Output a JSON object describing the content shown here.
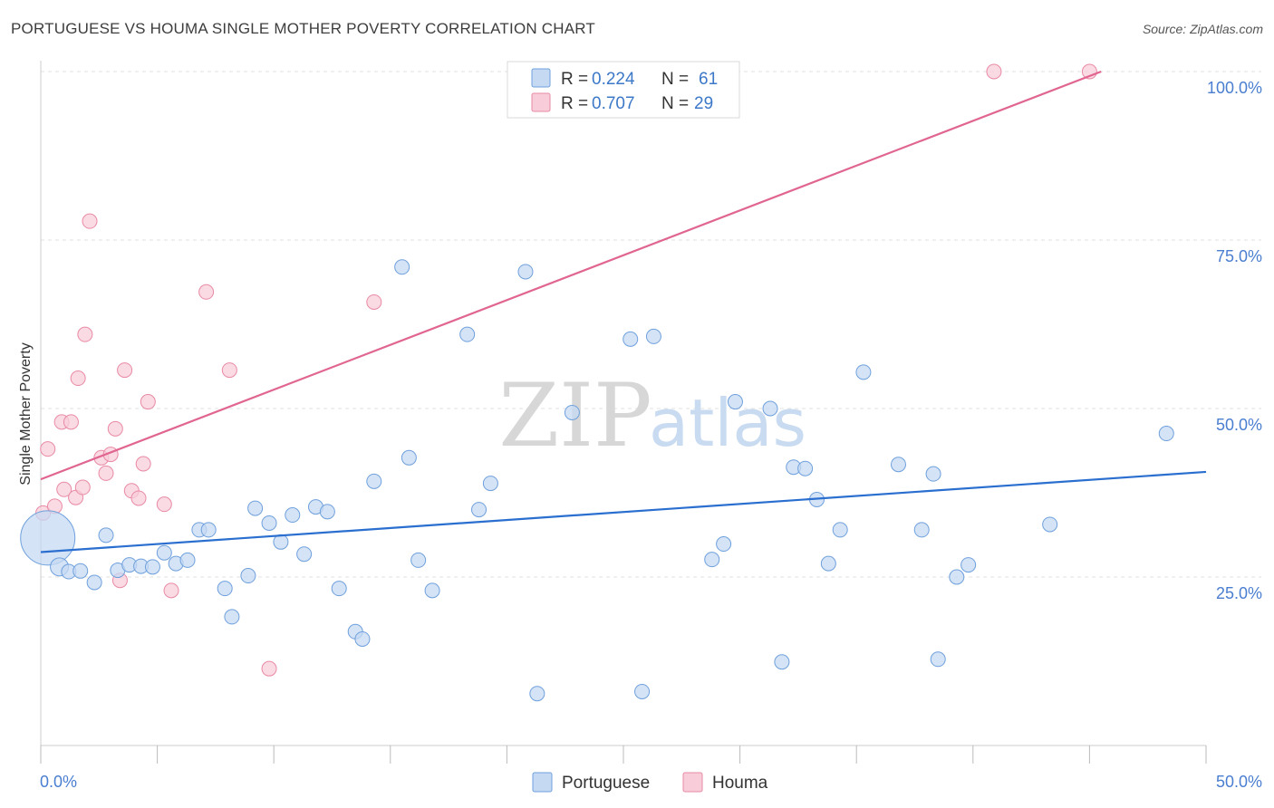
{
  "title": "PORTUGUESE VS HOUMA SINGLE MOTHER POVERTY CORRELATION CHART",
  "source": "Source: ZipAtlas.com",
  "watermark": {
    "zip": "ZIP",
    "atlas": "atlas"
  },
  "colors": {
    "portuguese": "#6fa0dc",
    "portuguese_fill": "#c5d9f3",
    "portuguese_line": "#2a6fcf",
    "houma": "#e98aa5",
    "houma_fill": "#f8cdd9",
    "houma_line": "#e06590",
    "value_text": "#3c78c8"
  },
  "legend_top": {
    "rows": [
      {
        "r_label": "R =",
        "r_value": "0.224",
        "n_label": "N =",
        "n_value": "61"
      },
      {
        "r_label": "R =",
        "r_value": "0.707",
        "n_label": "N =",
        "n_value": "29"
      }
    ]
  },
  "legend_bottom": {
    "items": [
      "Portuguese",
      "Houma"
    ]
  },
  "chart_data": {
    "type": "scatter",
    "title": "PORTUGUESE VS HOUMA SINGLE MOTHER POVERTY CORRELATION CHART",
    "xlabel": "",
    "ylabel": "Single Mother Poverty",
    "xlim": [
      0,
      50
    ],
    "ylim": [
      0,
      105
    ],
    "x_tick_labels": [
      "0.0%",
      "50.0%"
    ],
    "y_ticks": [
      25,
      50,
      75,
      100
    ],
    "y_tick_labels": [
      "25.0%",
      "50.0%",
      "75.0%",
      "100.0%"
    ],
    "grid": true,
    "legend_position": "top-center",
    "series": [
      {
        "name": "Portuguese",
        "r": 0.224,
        "n": 61,
        "trend": [
          [
            0,
            28.7
          ],
          [
            50,
            40.6
          ]
        ],
        "points": [
          [
            0.3,
            30.8
          ],
          [
            0.8,
            26.5
          ],
          [
            1.2,
            25.8
          ],
          [
            1.7,
            25.9
          ],
          [
            2.3,
            24.2
          ],
          [
            2.8,
            31.2
          ],
          [
            3.3,
            26.0
          ],
          [
            3.8,
            26.8
          ],
          [
            4.3,
            26.6
          ],
          [
            4.8,
            26.5
          ],
          [
            5.3,
            28.6
          ],
          [
            5.8,
            27.0
          ],
          [
            6.3,
            27.5
          ],
          [
            6.8,
            32.0
          ],
          [
            7.2,
            32.0
          ],
          [
            7.9,
            23.3
          ],
          [
            8.2,
            19.1
          ],
          [
            8.9,
            25.2
          ],
          [
            9.2,
            35.2
          ],
          [
            9.8,
            33.0
          ],
          [
            10.3,
            30.2
          ],
          [
            10.8,
            34.2
          ],
          [
            11.3,
            28.4
          ],
          [
            11.8,
            35.4
          ],
          [
            12.3,
            34.7
          ],
          [
            12.8,
            23.3
          ],
          [
            13.5,
            16.9
          ],
          [
            13.8,
            15.8
          ],
          [
            14.3,
            39.2
          ],
          [
            15.5,
            71.0
          ],
          [
            15.8,
            42.7
          ],
          [
            16.2,
            27.5
          ],
          [
            16.8,
            23.0
          ],
          [
            18.3,
            61.0
          ],
          [
            18.8,
            35.0
          ],
          [
            19.3,
            38.9
          ],
          [
            20.8,
            70.3
          ],
          [
            21.3,
            7.7
          ],
          [
            22.8,
            49.4
          ],
          [
            25.3,
            60.3
          ],
          [
            25.8,
            8.0
          ],
          [
            26.3,
            60.7
          ],
          [
            28.8,
            27.6
          ],
          [
            29.3,
            29.9
          ],
          [
            29.8,
            51.0
          ],
          [
            31.3,
            50.0
          ],
          [
            31.8,
            12.4
          ],
          [
            32.3,
            41.3
          ],
          [
            32.8,
            41.1
          ],
          [
            33.3,
            36.5
          ],
          [
            33.8,
            27.0
          ],
          [
            34.3,
            32.0
          ],
          [
            35.3,
            55.4
          ],
          [
            36.8,
            41.7
          ],
          [
            37.8,
            32.0
          ],
          [
            38.3,
            40.3
          ],
          [
            38.5,
            12.8
          ],
          [
            39.3,
            25.0
          ],
          [
            39.8,
            26.8
          ],
          [
            43.3,
            32.8
          ],
          [
            48.3,
            46.3
          ]
        ],
        "point_sizes": [
          30,
          10,
          8,
          8,
          8,
          8,
          8,
          8,
          8,
          8,
          8,
          8,
          8,
          8,
          8,
          8,
          8,
          8,
          8,
          8,
          8,
          8,
          8,
          8,
          8,
          8,
          8,
          8,
          8,
          8,
          8,
          8,
          8,
          8,
          8,
          8,
          8,
          8,
          8,
          8,
          8,
          8,
          8,
          8,
          8,
          8,
          8,
          8,
          8,
          8,
          8,
          8,
          8,
          8,
          8,
          8,
          8,
          8,
          8,
          8,
          8
        ]
      },
      {
        "name": "Houma",
        "r": 0.707,
        "n": 29,
        "trend": [
          [
            0,
            39.5
          ],
          [
            45.5,
            100.0
          ]
        ],
        "points": [
          [
            0.1,
            34.5
          ],
          [
            0.3,
            44.0
          ],
          [
            0.6,
            35.5
          ],
          [
            0.9,
            48.0
          ],
          [
            1.0,
            38.0
          ],
          [
            1.3,
            48.0
          ],
          [
            1.5,
            36.8
          ],
          [
            1.6,
            54.5
          ],
          [
            1.8,
            38.3
          ],
          [
            1.9,
            61.0
          ],
          [
            2.1,
            77.8
          ],
          [
            2.6,
            42.7
          ],
          [
            2.8,
            40.4
          ],
          [
            3.0,
            43.2
          ],
          [
            3.2,
            47.0
          ],
          [
            3.4,
            24.5
          ],
          [
            3.6,
            55.7
          ],
          [
            3.9,
            37.8
          ],
          [
            4.2,
            36.7
          ],
          [
            4.4,
            41.8
          ],
          [
            4.6,
            51.0
          ],
          [
            5.3,
            35.8
          ],
          [
            5.6,
            23.0
          ],
          [
            7.1,
            67.3
          ],
          [
            8.1,
            55.7
          ],
          [
            9.8,
            11.4
          ],
          [
            14.3,
            65.8
          ],
          [
            40.9,
            100.0
          ],
          [
            45.0,
            100.0
          ]
        ],
        "point_sizes": [
          8,
          8,
          8,
          8,
          8,
          8,
          8,
          8,
          8,
          8,
          8,
          8,
          8,
          8,
          8,
          8,
          8,
          8,
          8,
          8,
          8,
          8,
          8,
          8,
          8,
          8,
          8,
          8,
          8
        ]
      }
    ]
  }
}
